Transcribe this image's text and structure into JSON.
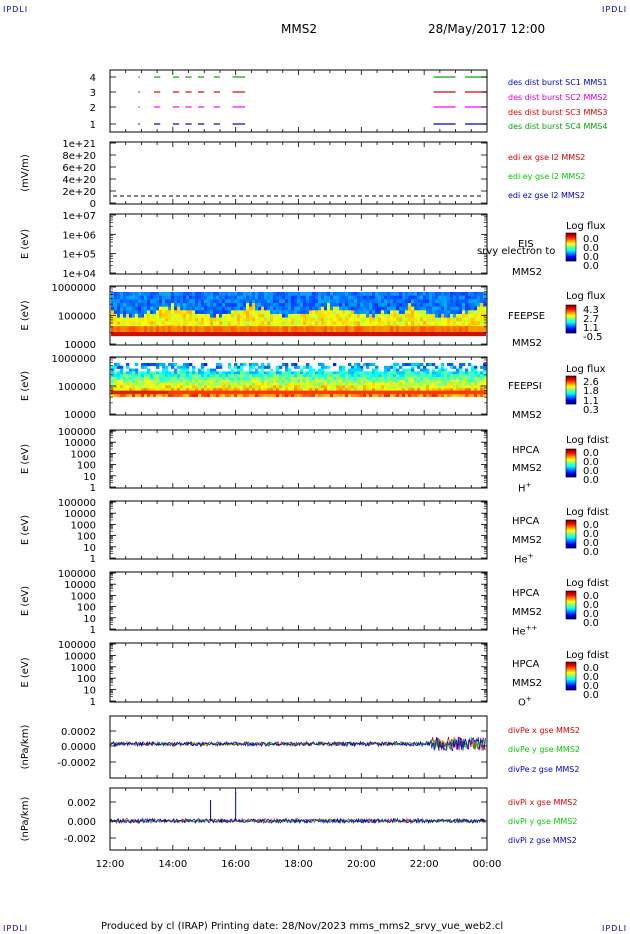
{
  "corners": {
    "tl": "IPDLI",
    "tr": "IPDLI",
    "bl": "IPDLI",
    "br": "IPDLI"
  },
  "header": {
    "spacecraft": "MMS2",
    "datetime": "28/May/2017 12:00"
  },
  "footer": {
    "text": "Produced by cl (IRAP)    Printing date: 28/Nov/2023    mms_mms2_srvy_vue_web2.cl"
  },
  "colors": {
    "mms1": "#00aa00",
    "mms2": "#ff00ff",
    "mms3": "#dd0000",
    "mms4": "#0000cc",
    "x": "#dd0000",
    "y": "#00cc00",
    "z": "#0000cc"
  },
  "chart_data": [
    {
      "type": "line",
      "panel": "burst",
      "yticks": [
        "4",
        "3",
        "2",
        "1"
      ],
      "legend": [
        "des dist burst SC1 MMS1",
        "des dist burst SC2 MMS2",
        "des dist burst SC3 MMS3",
        "des dist burst SC4 MMS4"
      ],
      "series": [
        {
          "name": "des dist burst SC1 MMS1",
          "level": 4,
          "segments": [
            [
              12.9,
              12.95
            ],
            [
              13.4,
              13.6
            ],
            [
              14.0,
              14.2
            ],
            [
              14.4,
              14.6
            ],
            [
              14.8,
              15.0
            ],
            [
              15.3,
              15.5
            ],
            [
              15.9,
              16.3
            ],
            [
              22.3,
              23.0
            ],
            [
              23.3,
              24.0
            ]
          ]
        },
        {
          "name": "des dist burst SC2 MMS2",
          "level": 3,
          "segments": [
            [
              12.9,
              12.95
            ],
            [
              13.4,
              13.6
            ],
            [
              14.0,
              14.2
            ],
            [
              14.4,
              14.6
            ],
            [
              14.8,
              15.0
            ],
            [
              15.3,
              15.5
            ],
            [
              15.9,
              16.3
            ],
            [
              22.3,
              23.0
            ],
            [
              23.3,
              24.0
            ]
          ]
        },
        {
          "name": "des dist burst SC3 MMS3",
          "level": 2,
          "segments": [
            [
              12.9,
              12.95
            ],
            [
              13.4,
              13.6
            ],
            [
              14.0,
              14.2
            ],
            [
              14.4,
              14.6
            ],
            [
              14.8,
              15.0
            ],
            [
              15.3,
              15.5
            ],
            [
              15.9,
              16.3
            ],
            [
              22.3,
              23.0
            ],
            [
              23.3,
              24.0
            ]
          ]
        },
        {
          "name": "des dist burst SC4 MMS4",
          "level": 1,
          "segments": [
            [
              12.9,
              12.95
            ],
            [
              13.4,
              13.6
            ],
            [
              14.0,
              14.2
            ],
            [
              14.4,
              14.6
            ],
            [
              14.8,
              15.0
            ],
            [
              15.3,
              15.5
            ],
            [
              15.9,
              16.3
            ],
            [
              22.3,
              23.0
            ],
            [
              23.3,
              24.0
            ]
          ]
        }
      ]
    },
    {
      "type": "line",
      "panel": "edi",
      "ylabel": "(mV/m)",
      "yticks": [
        "1e+21",
        "8e+20",
        "6e+20",
        "4e+20",
        "2e+20",
        "0"
      ],
      "legend": [
        "edi ex gse l2 MMS2",
        "edi ey gse l2 MMS2",
        "edi ez gse l2 MMS2"
      ]
    },
    {
      "type": "heatmap",
      "panel": "eis",
      "ylabel": "E (eV)",
      "yticks": [
        "1e+07",
        "1e+06",
        "1e+05",
        "1e+04"
      ],
      "instrument": "EIS",
      "sc": "MMS2",
      "overlay": "srvy electron to",
      "cbar": {
        "title": "Log flux",
        "values": [
          "0.0",
          "0.0",
          "0.0",
          "0.0"
        ]
      }
    },
    {
      "type": "heatmap",
      "panel": "feeps_e",
      "ylabel": "E (eV)",
      "yticks": [
        "1000000",
        "100000",
        "10000"
      ],
      "instrument": "FEEPSE",
      "sc": "MMS2",
      "cbar": {
        "title": "Log flux",
        "values": [
          "4.3",
          "2.7",
          "1.1",
          "-0.5"
        ]
      }
    },
    {
      "type": "heatmap",
      "panel": "feeps_i",
      "ylabel": "E (eV)",
      "yticks": [
        "1000000",
        "100000",
        "10000"
      ],
      "instrument": "FEEPSI",
      "sc": "MMS2",
      "cbar": {
        "title": "Log flux",
        "values": [
          "2.6",
          "1.8",
          "1.1",
          "0.3"
        ]
      }
    },
    {
      "type": "heatmap",
      "panel": "hpca_h",
      "ylabel": "E (eV)",
      "yticks": [
        "100000",
        "10000",
        "1000",
        "100",
        "10",
        "1"
      ],
      "instrument": "HPCA",
      "sc": "MMS2",
      "species": "H",
      "cbar": {
        "title": "Log fdist",
        "values": [
          "0.0",
          "0.0",
          "0.0",
          "0.0"
        ]
      }
    },
    {
      "type": "heatmap",
      "panel": "hpca_he",
      "ylabel": "E (eV)",
      "yticks": [
        "100000",
        "10000",
        "1000",
        "100",
        "10",
        "1"
      ],
      "instrument": "HPCA",
      "sc": "MMS2",
      "species": "He",
      "cbar": {
        "title": "Log fdist",
        "values": [
          "0.0",
          "0.0",
          "0.0",
          "0.0"
        ]
      }
    },
    {
      "type": "heatmap",
      "panel": "hpca_he2",
      "ylabel": "E (eV)",
      "yticks": [
        "100000",
        "10000",
        "1000",
        "100",
        "10",
        "1"
      ],
      "instrument": "HPCA",
      "sc": "MMS2",
      "species": "He",
      "cbar": {
        "title": "Log fdist",
        "values": [
          "0.0",
          "0.0",
          "0.0",
          "0.0"
        ]
      }
    },
    {
      "type": "heatmap",
      "panel": "hpca_o",
      "ylabel": "E (eV)",
      "yticks": [
        "100000",
        "10000",
        "1000",
        "100",
        "10",
        "1"
      ],
      "instrument": "HPCA",
      "sc": "MMS2",
      "species": "O",
      "cbar": {
        "title": "Log fdist",
        "values": [
          "0.0",
          "0.0",
          "0.0",
          "0.0"
        ]
      }
    },
    {
      "type": "line",
      "panel": "divpe",
      "ylabel": "(nPa/km)",
      "yticks": [
        "0.0002",
        "0.0000",
        "-0.0002"
      ],
      "legend": [
        "divPe x gse MMS2",
        "divPe y gse MMS2",
        "divPe z gse MMS2"
      ]
    },
    {
      "type": "line",
      "panel": "divpi",
      "ylabel": "(nPa/km)",
      "yticks": [
        "0.002",
        "0.000",
        "-0.002"
      ],
      "legend": [
        "divPi x gse MMS2",
        "divPi y gse MMS2",
        "divPi z gse MMS2"
      ]
    }
  ],
  "xaxis": {
    "ticks": [
      "12:00",
      "14:00",
      "16:00",
      "18:00",
      "20:00",
      "22:00",
      "00:00"
    ]
  }
}
